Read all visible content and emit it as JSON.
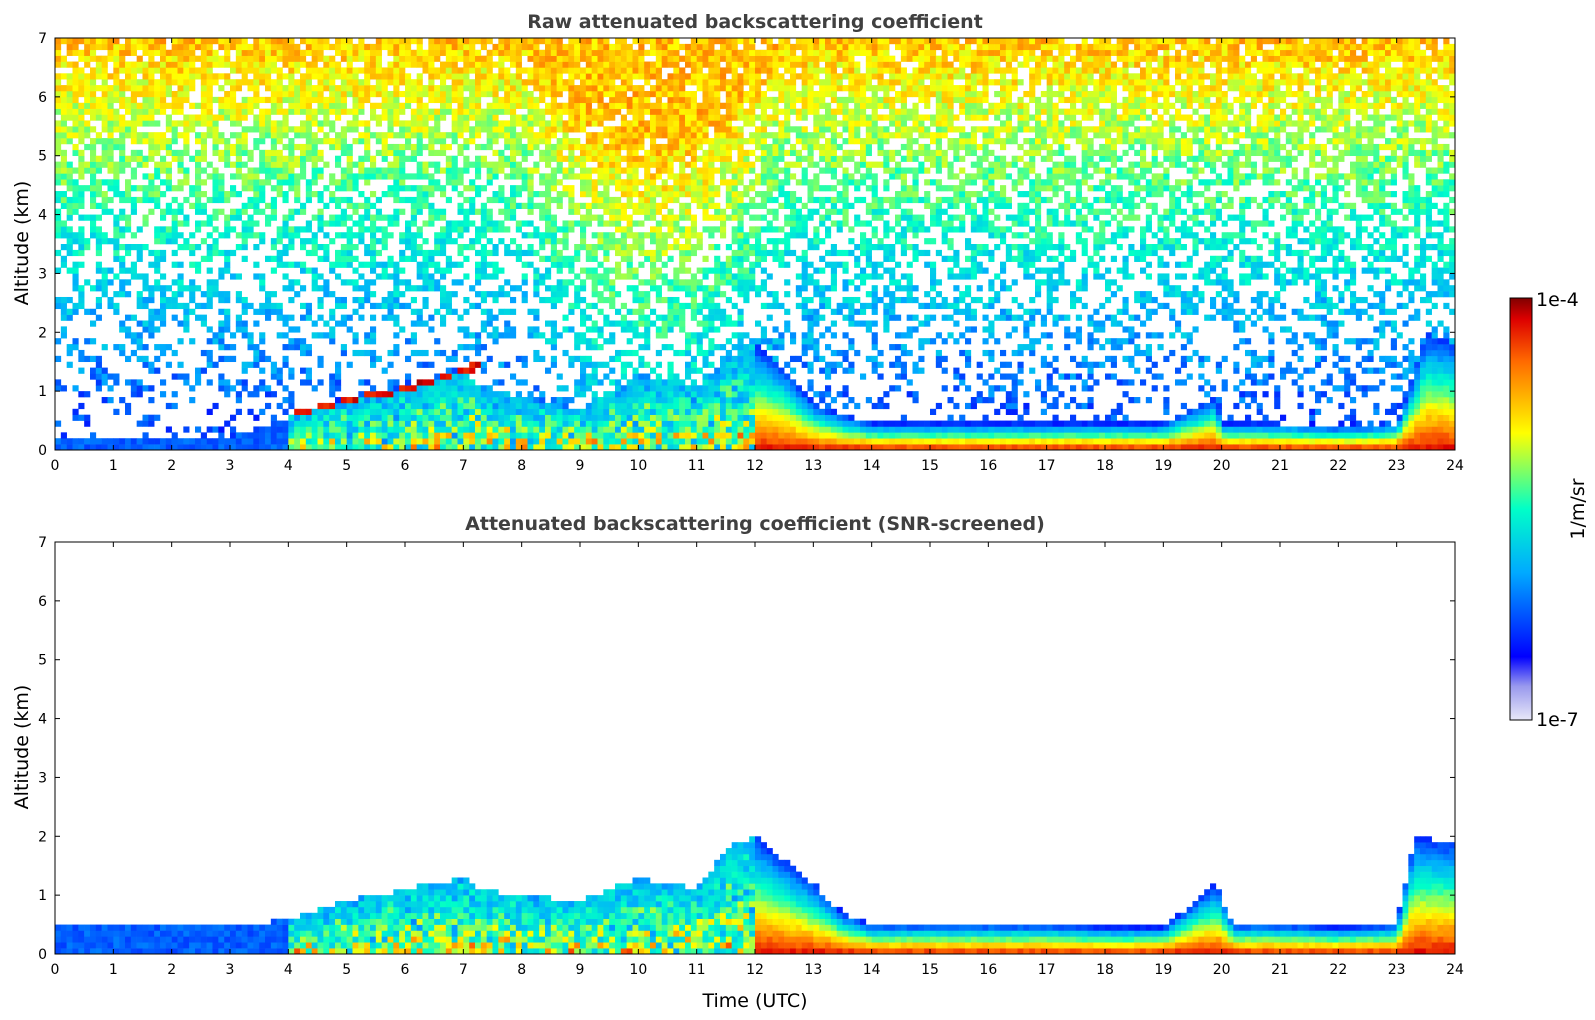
{
  "chart_data": [
    {
      "type": "heatmap",
      "title": "Raw attenuated backscattering coefficient",
      "xlabel": "",
      "ylabel": "Altitude (km)",
      "xlim": [
        0,
        24
      ],
      "ylim": [
        0,
        7
      ],
      "xticks": [
        "0",
        "1",
        "2",
        "3",
        "4",
        "5",
        "6",
        "7",
        "8",
        "9",
        "10",
        "11",
        "12",
        "13",
        "14",
        "15",
        "16",
        "17",
        "18",
        "19",
        "20",
        "21",
        "22",
        "23",
        "24"
      ],
      "yticks": [
        "0",
        "1",
        "2",
        "3",
        "4",
        "5",
        "6",
        "7"
      ],
      "boundary_layer_top_km": [
        [
          0,
          0.25
        ],
        [
          1,
          0.25
        ],
        [
          2,
          0.2
        ],
        [
          3,
          0.2
        ],
        [
          4,
          0.55
        ],
        [
          5,
          0.8
        ],
        [
          6,
          1.0
        ],
        [
          7,
          1.3
        ],
        [
          7.3,
          1.1
        ],
        [
          8,
          0.9
        ],
        [
          9,
          0.7
        ],
        [
          10,
          1.3
        ],
        [
          11,
          1.1
        ],
        [
          11.5,
          1.5
        ],
        [
          12,
          1.8
        ],
        [
          12.5,
          1.4
        ],
        [
          13,
          0.8
        ],
        [
          13.5,
          0.6
        ],
        [
          14,
          0.45
        ],
        [
          15,
          0.45
        ],
        [
          16,
          0.45
        ],
        [
          17,
          0.45
        ],
        [
          18,
          0.45
        ],
        [
          19,
          0.45
        ],
        [
          19.9,
          0.9
        ],
        [
          20,
          0.45
        ],
        [
          21,
          0.45
        ],
        [
          22,
          0.4
        ],
        [
          23,
          0.45
        ],
        [
          23.2,
          1.0
        ],
        [
          23.5,
          2.0
        ],
        [
          24,
          1.8
        ]
      ],
      "aerosol_layer_km": [
        [
          4,
          0.55
        ],
        [
          5,
          0.8
        ],
        [
          6,
          1.0
        ],
        [
          7,
          1.3
        ],
        [
          7.3,
          1.5
        ]
      ],
      "noise_boost_hours": [
        8,
        12.5
      ]
    },
    {
      "type": "heatmap",
      "title": "Attenuated backscattering coefficient (SNR-screened)",
      "xlabel": "Time (UTC)",
      "ylabel": "Altitude (km)",
      "xlim": [
        0,
        24
      ],
      "ylim": [
        0,
        7
      ],
      "xticks": [
        "0",
        "1",
        "2",
        "3",
        "4",
        "5",
        "6",
        "7",
        "8",
        "9",
        "10",
        "11",
        "12",
        "13",
        "14",
        "15",
        "16",
        "17",
        "18",
        "19",
        "20",
        "21",
        "22",
        "23",
        "24"
      ],
      "yticks": [
        "0",
        "1",
        "2",
        "3",
        "4",
        "5",
        "6",
        "7"
      ],
      "boundary_layer_top_km": [
        [
          0,
          0.45
        ],
        [
          1,
          0.45
        ],
        [
          2,
          0.45
        ],
        [
          3,
          0.45
        ],
        [
          4,
          0.6
        ],
        [
          5,
          0.9
        ],
        [
          6,
          1.1
        ],
        [
          7,
          1.3
        ],
        [
          7.3,
          1.1
        ],
        [
          8,
          1.0
        ],
        [
          9,
          0.9
        ],
        [
          10,
          1.3
        ],
        [
          11,
          1.1
        ],
        [
          11.5,
          1.8
        ],
        [
          12,
          2.0
        ],
        [
          12.5,
          1.6
        ],
        [
          13,
          1.2
        ],
        [
          13.5,
          0.7
        ],
        [
          14,
          0.5
        ],
        [
          15,
          0.5
        ],
        [
          16,
          0.5
        ],
        [
          17,
          0.5
        ],
        [
          18,
          0.45
        ],
        [
          19,
          0.45
        ],
        [
          19.9,
          1.2
        ],
        [
          20.2,
          0.5
        ],
        [
          21,
          0.5
        ],
        [
          22,
          0.45
        ],
        [
          23,
          0.5
        ],
        [
          23.3,
          2.0
        ],
        [
          24,
          1.9
        ]
      ]
    }
  ],
  "colorbar": {
    "min_label": "1e-7",
    "max_label": "1e-4",
    "unit_label": "1/m/sr",
    "colors": [
      "#e8e8f8",
      "#0000ff",
      "#00aaff",
      "#00ffc8",
      "#ffff00",
      "#ff6a00",
      "#800000"
    ]
  }
}
